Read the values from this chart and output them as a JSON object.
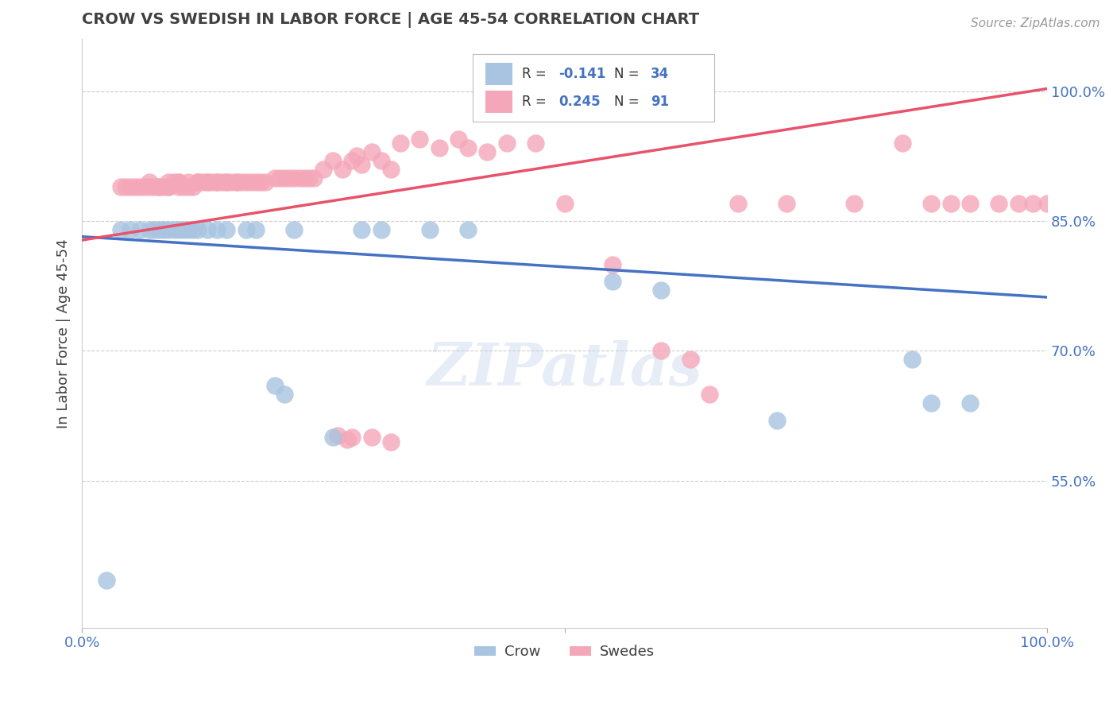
{
  "title": "CROW VS SWEDISH IN LABOR FORCE | AGE 45-54 CORRELATION CHART",
  "source_text": "Source: ZipAtlas.com",
  "ylabel": "In Labor Force | Age 45-54",
  "xlim": [
    0.0,
    1.0
  ],
  "ylim": [
    0.38,
    1.06
  ],
  "ytick_vals": [
    0.55,
    0.7,
    0.85,
    1.0
  ],
  "ytick_labels": [
    "55.0%",
    "70.0%",
    "85.0%",
    "100.0%"
  ],
  "xtick_vals": [
    0.0,
    0.5,
    1.0
  ],
  "xtick_labels": [
    "0.0%",
    "",
    "100.0%"
  ],
  "crow_R": -0.141,
  "crow_N": 34,
  "swede_R": 0.245,
  "swede_N": 91,
  "crow_color": "#a8c4e0",
  "swede_color": "#f4a7b9",
  "crow_line_color": "#4472c4",
  "swede_line_color": "#e8526a",
  "title_color": "#404040",
  "tick_color": "#4472c4",
  "grid_color": "#cccccc",
  "background_color": "#ffffff",
  "watermark_text": "ZIPatlas",
  "crow_x": [
    0.025,
    0.04,
    0.05,
    0.06,
    0.07,
    0.075,
    0.08,
    0.085,
    0.09,
    0.095,
    0.1,
    0.105,
    0.11,
    0.115,
    0.12,
    0.13,
    0.14,
    0.15,
    0.17,
    0.18,
    0.2,
    0.21,
    0.22,
    0.26,
    0.29,
    0.31,
    0.36,
    0.4,
    0.55,
    0.6,
    0.72,
    0.86,
    0.88,
    0.92
  ],
  "crow_y": [
    0.435,
    0.84,
    0.84,
    0.84,
    0.84,
    0.84,
    0.84,
    0.84,
    0.84,
    0.84,
    0.84,
    0.84,
    0.84,
    0.84,
    0.84,
    0.84,
    0.84,
    0.84,
    0.84,
    0.84,
    0.66,
    0.65,
    0.84,
    0.6,
    0.84,
    0.84,
    0.84,
    0.84,
    0.78,
    0.77,
    0.62,
    0.69,
    0.64,
    0.64
  ],
  "swede_x": [
    0.04,
    0.045,
    0.05,
    0.055,
    0.06,
    0.065,
    0.07,
    0.07,
    0.075,
    0.08,
    0.08,
    0.085,
    0.09,
    0.09,
    0.09,
    0.095,
    0.1,
    0.1,
    0.1,
    0.105,
    0.11,
    0.11,
    0.115,
    0.12,
    0.12,
    0.12,
    0.125,
    0.13,
    0.13,
    0.135,
    0.14,
    0.14,
    0.145,
    0.15,
    0.15,
    0.155,
    0.16,
    0.16,
    0.165,
    0.17,
    0.175,
    0.18,
    0.185,
    0.19,
    0.2,
    0.205,
    0.21,
    0.215,
    0.22,
    0.225,
    0.23,
    0.235,
    0.24,
    0.25,
    0.26,
    0.27,
    0.28,
    0.285,
    0.29,
    0.3,
    0.31,
    0.32,
    0.33,
    0.35,
    0.37,
    0.39,
    0.4,
    0.42,
    0.44,
    0.47,
    0.5,
    0.55,
    0.6,
    0.63,
    0.65,
    0.68,
    0.73,
    0.8,
    0.85,
    0.88,
    0.9,
    0.92,
    0.95,
    0.97,
    0.985,
    1.0,
    0.28,
    0.3,
    0.32,
    0.275,
    0.265
  ],
  "swede_y": [
    0.89,
    0.89,
    0.89,
    0.89,
    0.89,
    0.89,
    0.89,
    0.895,
    0.89,
    0.89,
    0.89,
    0.89,
    0.89,
    0.895,
    0.89,
    0.895,
    0.89,
    0.895,
    0.895,
    0.89,
    0.895,
    0.89,
    0.89,
    0.895,
    0.895,
    0.895,
    0.895,
    0.895,
    0.895,
    0.895,
    0.895,
    0.895,
    0.895,
    0.895,
    0.895,
    0.895,
    0.895,
    0.895,
    0.895,
    0.895,
    0.895,
    0.895,
    0.895,
    0.895,
    0.9,
    0.9,
    0.9,
    0.9,
    0.9,
    0.9,
    0.9,
    0.9,
    0.9,
    0.91,
    0.92,
    0.91,
    0.92,
    0.925,
    0.915,
    0.93,
    0.92,
    0.91,
    0.94,
    0.945,
    0.935,
    0.945,
    0.935,
    0.93,
    0.94,
    0.94,
    0.87,
    0.8,
    0.7,
    0.69,
    0.65,
    0.87,
    0.87,
    0.87,
    0.94,
    0.87,
    0.87,
    0.87,
    0.87,
    0.87,
    0.87,
    0.87,
    0.6,
    0.6,
    0.595,
    0.598,
    0.602
  ]
}
